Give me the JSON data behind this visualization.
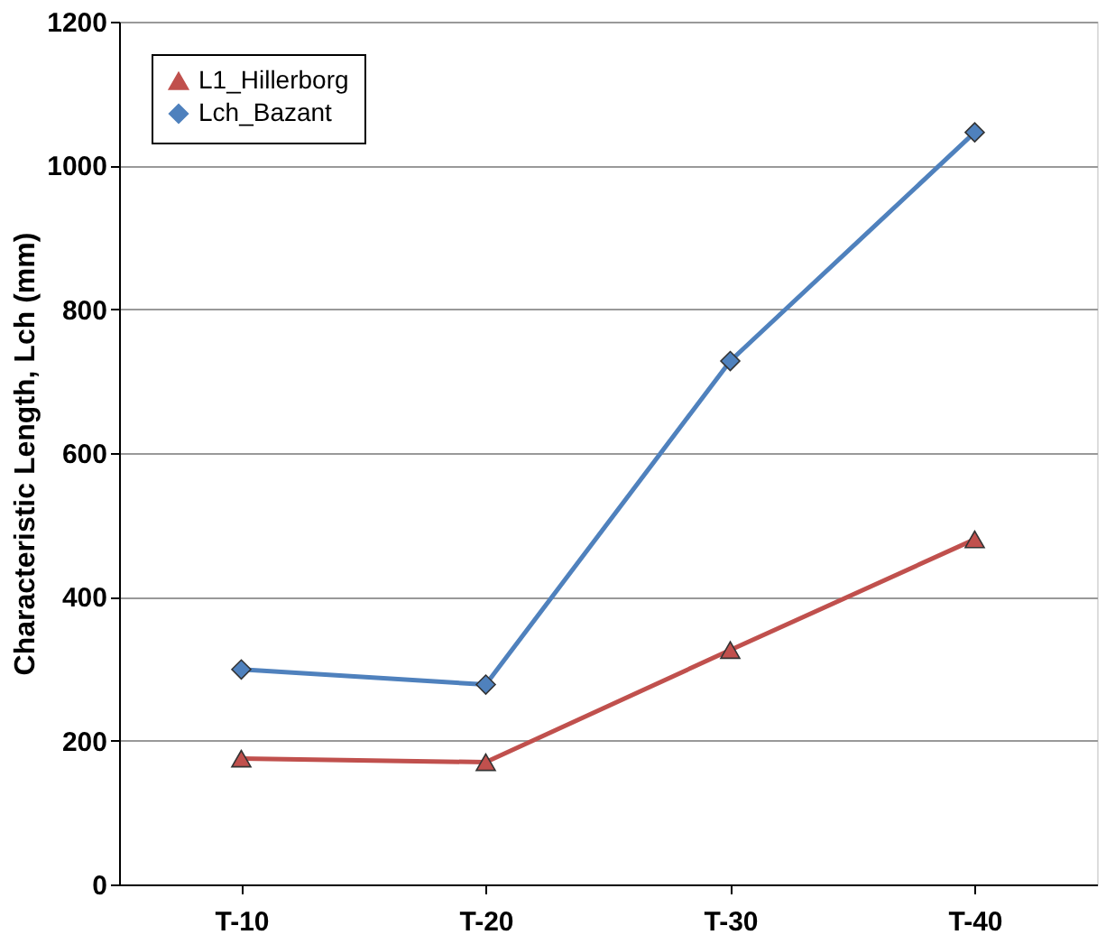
{
  "chart_data": {
    "type": "line",
    "ylabel": "Characteristic Length, Lch (mm)",
    "categories": [
      "T-10",
      "T-20",
      "T-30",
      "T-40"
    ],
    "series": [
      {
        "name": "L1_Hillerborg",
        "color": "#c0504d",
        "marker": "triangle",
        "values": [
          175,
          170,
          326,
          480
        ]
      },
      {
        "name": "Lch_Bazant",
        "color": "#4f81bd",
        "marker": "diamond",
        "values": [
          299,
          278,
          728,
          1046
        ]
      }
    ],
    "ylim": [
      0,
      1200
    ],
    "yticks": [
      0,
      200,
      400,
      600,
      800,
      1000,
      1200
    ],
    "grid": "y",
    "legend": "top left",
    "line_style": "solid"
  }
}
